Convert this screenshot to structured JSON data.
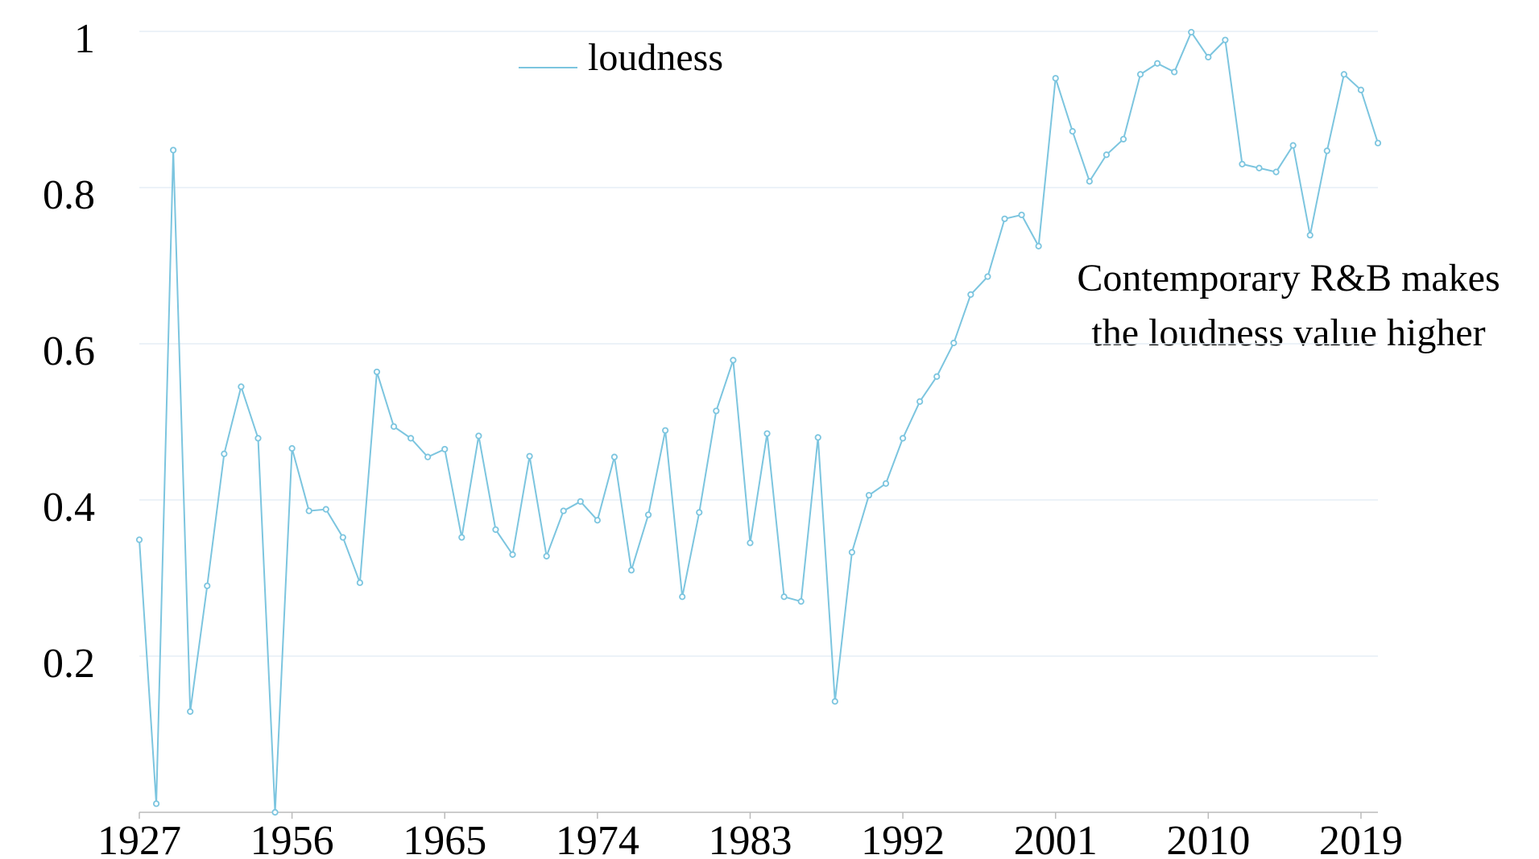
{
  "chart_data": {
    "type": "line",
    "categories": [
      "1927",
      null,
      null,
      null,
      null,
      null,
      null,
      null,
      null,
      "1956",
      null,
      null,
      null,
      null,
      null,
      null,
      null,
      null,
      "1965",
      null,
      null,
      null,
      null,
      null,
      null,
      null,
      null,
      "1974",
      null,
      null,
      null,
      null,
      null,
      null,
      null,
      null,
      "1983",
      null,
      null,
      null,
      null,
      null,
      null,
      null,
      null,
      "1992",
      null,
      null,
      null,
      null,
      null,
      null,
      null,
      null,
      "2001",
      null,
      null,
      null,
      null,
      null,
      null,
      null,
      null,
      "2010",
      null,
      null,
      null,
      null,
      null,
      null,
      null,
      null,
      "2019",
      null
    ],
    "series": [
      {
        "name": "loudness",
        "color": "#7cc5df",
        "values": [
          0.349,
          0.011,
          0.848,
          0.129,
          0.29,
          0.459,
          0.545,
          0.479,
          0.0,
          0.466,
          0.386,
          0.388,
          0.352,
          0.294,
          0.564,
          0.494,
          0.479,
          0.455,
          0.465,
          0.352,
          0.482,
          0.362,
          0.33,
          0.456,
          0.328,
          0.386,
          0.398,
          0.374,
          0.455,
          0.31,
          0.381,
          0.489,
          0.276,
          0.384,
          0.514,
          0.579,
          0.345,
          0.485,
          0.276,
          0.27,
          0.48,
          0.142,
          0.333,
          0.406,
          0.421,
          0.479,
          0.526,
          0.558,
          0.601,
          0.663,
          0.686,
          0.76,
          0.765,
          0.725,
          0.94,
          0.872,
          0.808,
          0.842,
          0.862,
          0.945,
          0.959,
          0.948,
          0.999,
          0.967,
          0.989,
          0.83,
          0.825,
          0.82,
          0.854,
          0.739,
          0.847,
          0.945,
          0.925,
          0.857
        ]
      }
    ],
    "ylim": [
      0,
      1
    ],
    "yticks": [
      0.2,
      0.4,
      0.6,
      0.8,
      1
    ],
    "grid": true,
    "annotations": [
      "Contemporary R&B makes",
      "the loudness value higher"
    ]
  }
}
